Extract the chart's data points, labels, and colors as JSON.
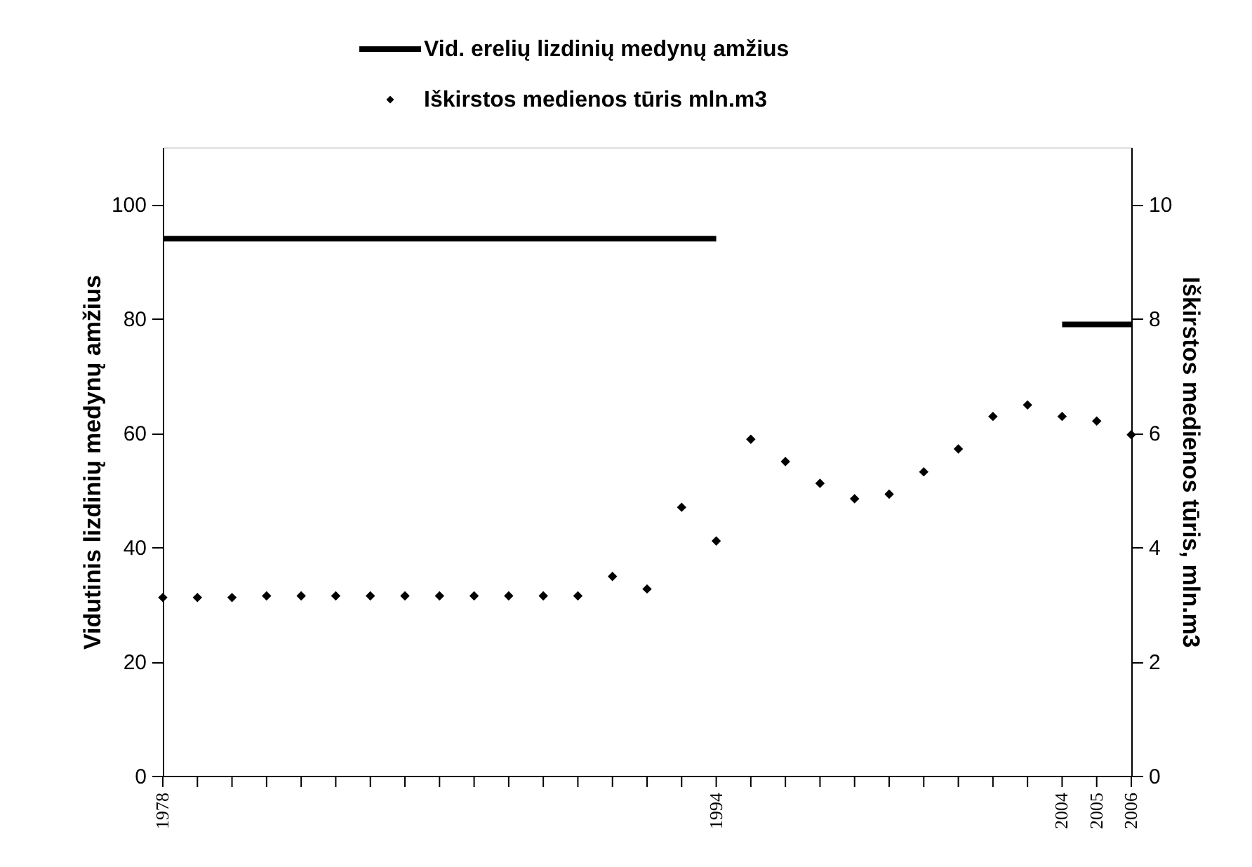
{
  "chart_data": {
    "type": "line",
    "x": [
      1978,
      1979,
      1980,
      1981,
      1982,
      1983,
      1984,
      1985,
      1986,
      1987,
      1988,
      1989,
      1990,
      1991,
      1992,
      1993,
      1994,
      1995,
      1996,
      1997,
      1998,
      1999,
      2000,
      2001,
      2002,
      2003,
      2004,
      2005,
      2006
    ],
    "ylabel": "Vidutinis lizdinių medynų amžius",
    "y2label": "Iškirstos medienos tūris, mln.m3",
    "series": [
      {
        "name": "Vid. erelių lizdinių medynų amžius",
        "color": "#000000",
        "values": [
          94,
          94,
          94,
          94,
          94,
          94,
          94,
          94,
          94,
          94,
          94,
          94,
          94,
          94,
          94,
          94,
          94,
          null,
          null,
          null,
          null,
          null,
          null,
          null,
          null,
          null,
          79,
          79,
          79
        ]
      },
      {
        "name": "Iškirstos medienos tūris mln.m3",
        "type": "scatter",
        "axis": "y2",
        "color": "#000000",
        "marker": "diamond",
        "values": [
          3.12,
          3.12,
          3.12,
          3.15,
          3.15,
          3.15,
          3.15,
          3.15,
          3.15,
          3.15,
          3.15,
          3.15,
          3.15,
          3.49,
          3.27,
          4.7,
          4.11,
          5.89,
          5.5,
          5.12,
          4.85,
          4.93,
          5.32,
          5.72,
          6.29,
          6.49,
          6.29,
          6.21,
          5.97
        ]
      }
    ],
    "xlim": [
      1978,
      2006
    ],
    "xticks": [
      1978,
      {
        "value": 1979,
        "label": null
      },
      {
        "value": 1980,
        "label": null
      },
      {
        "value": 1981,
        "label": null
      },
      {
        "value": 1982,
        "label": null
      },
      {
        "value": 1983,
        "label": null
      },
      {
        "value": 1984,
        "label": null
      },
      {
        "value": 1985,
        "label": null
      },
      {
        "value": 1986,
        "label": null
      },
      {
        "value": 1987,
        "label": null
      },
      {
        "value": 1988,
        "label": null
      },
      {
        "value": 1989,
        "label": null
      },
      {
        "value": 1990,
        "label": null
      },
      {
        "value": 1991,
        "label": null
      },
      {
        "value": 1992,
        "label": null
      },
      {
        "value": 1993,
        "label": null
      },
      1994,
      {
        "value": 1995,
        "label": null
      },
      {
        "value": 1996,
        "label": null
      },
      {
        "value": 1997,
        "label": null
      },
      {
        "value": 1998,
        "label": null
      },
      {
        "value": 1999,
        "label": null
      },
      {
        "value": 2000,
        "label": null
      },
      {
        "value": 2001,
        "label": null
      },
      {
        "value": 2002,
        "label": null
      },
      {
        "value": 2003,
        "label": null
      },
      2004,
      2005,
      2006
    ],
    "ylim": [
      0,
      110
    ],
    "yticks": [
      0,
      20,
      40,
      60,
      80,
      100
    ],
    "y2lim": [
      0,
      11
    ],
    "y2ticks": [
      0,
      2,
      4,
      6,
      8,
      10
    ],
    "legend": "top",
    "grid": false
  }
}
